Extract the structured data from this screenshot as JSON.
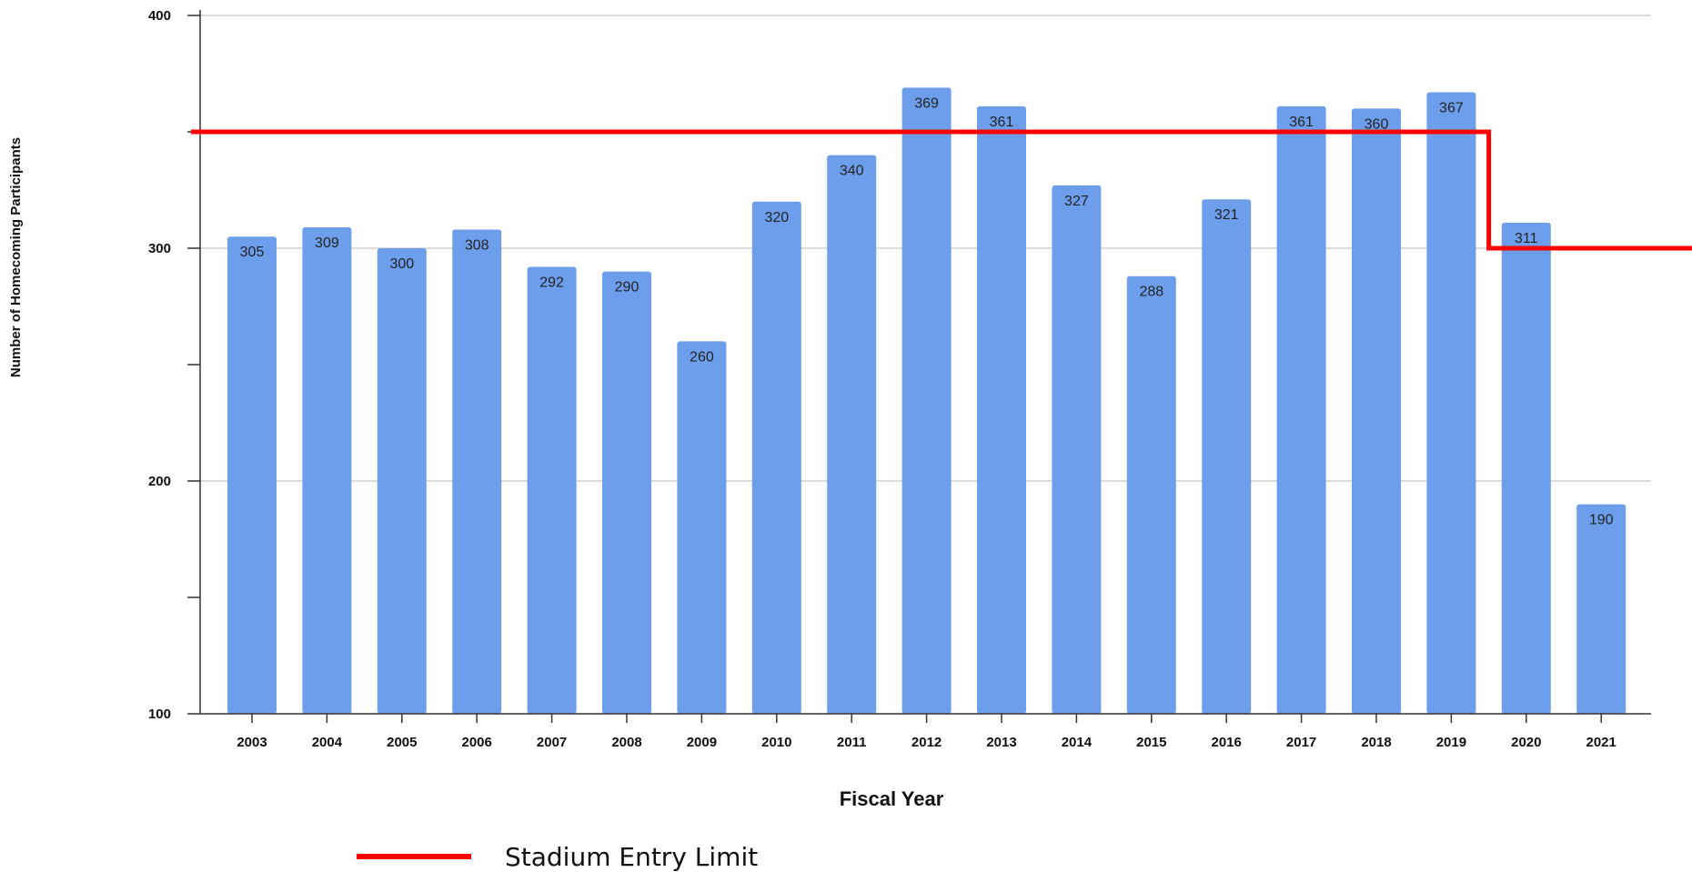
{
  "chart_data": {
    "type": "bar",
    "title": "",
    "xlabel": "Fiscal Year",
    "ylabel": "Number of Homecoming Participants",
    "ylim": [
      100,
      400
    ],
    "y_ticks": [
      100,
      200,
      300,
      400
    ],
    "grid": true,
    "legend_position": "bottom-left",
    "categories": [
      "2003",
      "2004",
      "2005",
      "2006",
      "2007",
      "2008",
      "2009",
      "2010",
      "2011",
      "2012",
      "2013",
      "2014",
      "2015",
      "2016",
      "2017",
      "2018",
      "2019",
      "2020",
      "2021"
    ],
    "series": [
      {
        "values": [
          305,
          309,
          300,
          308,
          292,
          290,
          260,
          320,
          340,
          369,
          361,
          327,
          288,
          321,
          361,
          360,
          367,
          311,
          190
        ],
        "color": "#6d9eeb"
      }
    ],
    "reference_line": {
      "name": "Stadium Entry Limit",
      "color": "#ff0000",
      "steps": [
        {
          "from": "start",
          "to": "2019",
          "value": 350
        },
        {
          "from": "2020",
          "to": "end",
          "value": 300
        }
      ]
    }
  }
}
